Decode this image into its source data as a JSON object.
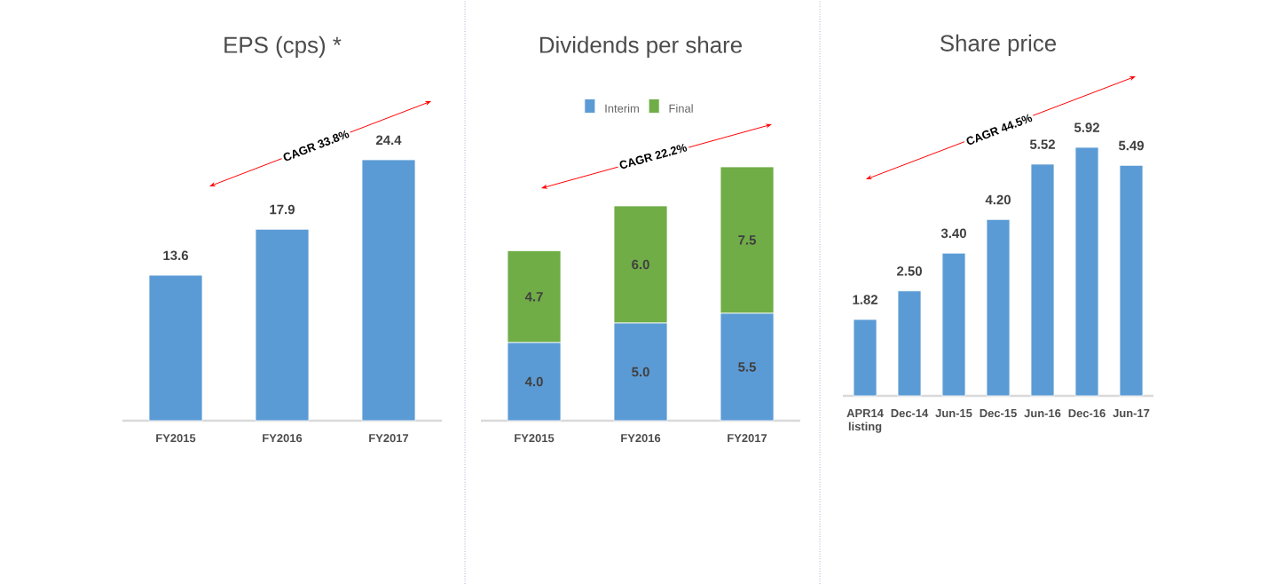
{
  "chart_data": [
    {
      "type": "bar",
      "title": "EPS (cps) *",
      "categories": [
        "FY2015",
        "FY2016",
        "FY2017"
      ],
      "values": [
        13.6,
        17.9,
        24.4
      ],
      "color": "#5b9bd5",
      "data_labels": true,
      "annotations": [
        "CAGR 33.8%"
      ]
    },
    {
      "type": "bar",
      "title": "Dividends per share",
      "categories": [
        "FY2015",
        "FY2016",
        "FY2017"
      ],
      "stacked": true,
      "legend": "top",
      "series": [
        {
          "name": "Interim",
          "color": "#5b9bd5",
          "values": [
            4.0,
            5.0,
            5.5
          ],
          "value_labels": [
            "4.0",
            "5.0",
            "5.5"
          ]
        },
        {
          "name": "Final",
          "color": "#70ad47",
          "values": [
            4.7,
            6.0,
            7.5
          ],
          "value_labels": [
            "4.7",
            "6.0",
            "7.5"
          ]
        }
      ],
      "annotations": [
        "CAGR 22.2%"
      ]
    },
    {
      "type": "bar",
      "title": "Share price",
      "categories": [
        "APR14 listing",
        "Dec-14",
        "Jun-15",
        "Dec-15",
        "Jun-16",
        "Dec-16",
        "Jun-17"
      ],
      "values": [
        1.82,
        2.5,
        3.4,
        4.2,
        5.52,
        5.92,
        5.49
      ],
      "value_labels": [
        "1.82",
        "2.50",
        "3.40",
        "4.20",
        "5.52",
        "5.92",
        "5.49"
      ],
      "color": "#5b9bd5",
      "annotations": [
        "CAGR 44.5%"
      ]
    }
  ]
}
